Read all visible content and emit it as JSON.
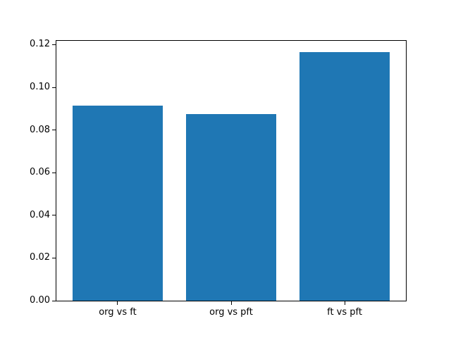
{
  "chart_data": {
    "type": "bar",
    "title": "",
    "categories": [
      "org vs ft",
      "org vs pft",
      "ft vs pft"
    ],
    "values": [
      0.0915,
      0.0875,
      0.1164
    ],
    "xlabel": "",
    "ylabel": "",
    "ylim": [
      0,
      0.1218
    ],
    "yticks": [
      0.0,
      0.02,
      0.04,
      0.06,
      0.08,
      0.1,
      0.12
    ],
    "ytick_labels": [
      "0.00",
      "0.02",
      "0.04",
      "0.06",
      "0.08",
      "0.10",
      "0.12"
    ],
    "bar_color": "#1f77b4",
    "bar_width_fraction": 0.8,
    "grid": false,
    "legend": null
  }
}
